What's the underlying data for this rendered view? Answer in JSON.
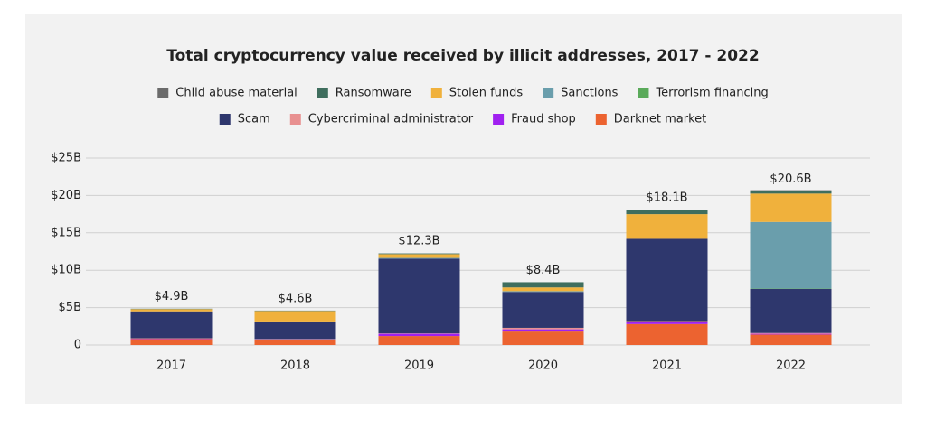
{
  "chart_data": {
    "type": "stacked-bar",
    "title": "Total cryptocurrency value received by illicit addresses, 2017 - 2022",
    "categories": [
      "2017",
      "2018",
      "2019",
      "2020",
      "2021",
      "2022"
    ],
    "series": [
      {
        "name": "Child abuse material",
        "color": "#6b6b6b",
        "values": [
          0,
          0,
          0,
          0,
          0,
          0.05
        ]
      },
      {
        "name": "Ransomware",
        "color": "#3f6e5e",
        "values": [
          0.05,
          0.05,
          0.1,
          0.7,
          0.6,
          0.4
        ]
      },
      {
        "name": "Stolen funds",
        "color": "#f0b13c",
        "values": [
          0.3,
          1.4,
          0.5,
          0.5,
          3.3,
          3.8
        ]
      },
      {
        "name": "Sanctions",
        "color": "#6a9eac",
        "values": [
          0,
          0.05,
          0.1,
          0.1,
          0,
          8.9
        ]
      },
      {
        "name": "Terrorism financing",
        "color": "#5aaa5a",
        "values": [
          0,
          0,
          0,
          0,
          0,
          0.05
        ]
      },
      {
        "name": "Scam",
        "color": "#2e376d",
        "values": [
          3.6,
          2.3,
          10.0,
          4.8,
          11.0,
          5.9
        ]
      },
      {
        "name": "Cybercriminal administrator",
        "color": "#e89090",
        "values": [
          0.05,
          0.05,
          0.05,
          0.2,
          0.1,
          0.1
        ]
      },
      {
        "name": "Fraud shop",
        "color": "#a020f0",
        "values": [
          0.05,
          0.05,
          0.3,
          0.3,
          0.3,
          0.1
        ]
      },
      {
        "name": "Darknet market",
        "color": "#ec6330",
        "values": [
          0.8,
          0.7,
          1.2,
          1.8,
          2.8,
          1.4
        ]
      }
    ],
    "totals": {
      "values": [
        4.9,
        4.6,
        12.3,
        8.4,
        18.1,
        20.6
      ],
      "value_labels": [
        "$4.9B",
        "$4.6B",
        "$12.3B",
        "$8.4B",
        "$18.1B",
        "$20.6B"
      ]
    },
    "ylim": [
      0,
      25
    ],
    "yticks": [
      0,
      {
        "value": 5,
        "label": "$5B"
      },
      {
        "value": 10,
        "label": "$10B"
      },
      {
        "value": 15,
        "label": "$15B"
      },
      {
        "value": 20,
        "label": "$20B"
      },
      {
        "value": 25,
        "label": "$25B"
      }
    ],
    "grid": true
  }
}
